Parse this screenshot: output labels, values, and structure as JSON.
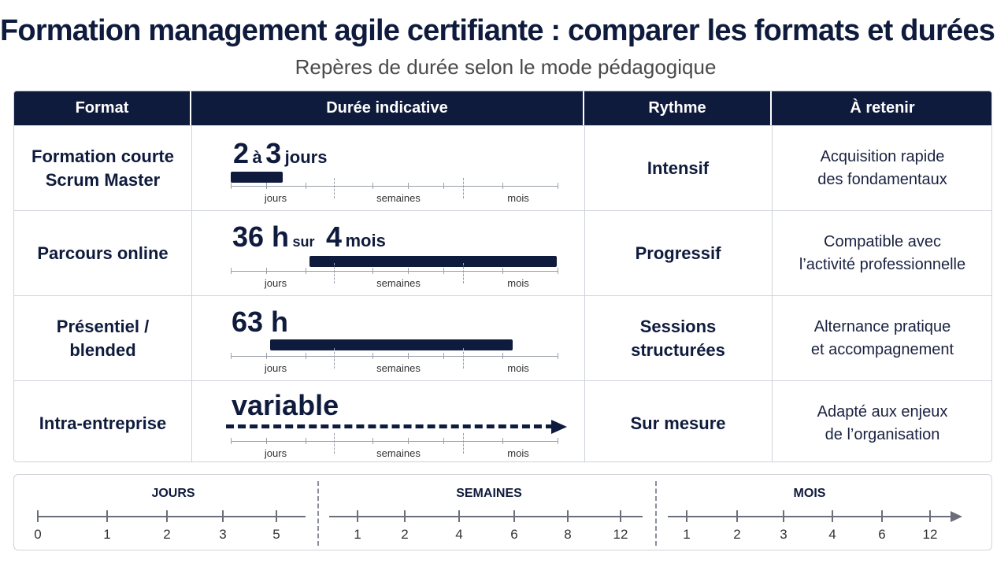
{
  "title": "Formation management agile certifiante : comparer les formats et durées",
  "subtitle": "Repères de durée selon le mode pédagogique",
  "headers": [
    "Format",
    "Durée indicative",
    "Rythme",
    "À retenir"
  ],
  "scale_labels": [
    "jours",
    "semaines",
    "mois"
  ],
  "rows": [
    {
      "format": "Formation courte\nScrum Master",
      "duration": {
        "a": "2",
        "b": "à",
        "c": "3",
        "d": "jours"
      },
      "span_units": "jours",
      "rythme": "Intensif",
      "retenir": "Acquisition rapide\ndes fondamentaux"
    },
    {
      "format": "Parcours online",
      "duration": {
        "a": "36 h",
        "b": "sur",
        "c": "4",
        "d": "mois"
      },
      "span_units": "semaines → mois",
      "rythme": "Progressif",
      "retenir": "Compatible avec\nl’activité professionnelle"
    },
    {
      "format": "Présentiel /\nblended",
      "duration": {
        "a": "63 h"
      },
      "span_units": "jours → mois",
      "rythme": "Sessions\nstructurées",
      "retenir": "Alternance pratique\net accompagnement"
    },
    {
      "format": "Intra-entreprise",
      "duration": {
        "a": "variable"
      },
      "span_units": "open-ended",
      "rythme": "Sur mesure",
      "retenir": "Adapté aux enjeux\nde l’organisation"
    }
  ],
  "bottom_scale": {
    "sections": [
      {
        "title": "JOURS",
        "ticks": [
          "0",
          "1",
          "2",
          "3",
          "5"
        ]
      },
      {
        "title": "SEMAINES",
        "ticks": [
          "1",
          "2",
          "4",
          "6",
          "8",
          "12"
        ]
      },
      {
        "title": "MOIS",
        "ticks": [
          "1",
          "2",
          "3",
          "4",
          "6",
          "12"
        ]
      }
    ]
  },
  "colors": {
    "navy": "#0f1b3d",
    "grid": "#cfd3da",
    "text_gray": "#4a4a4a"
  }
}
